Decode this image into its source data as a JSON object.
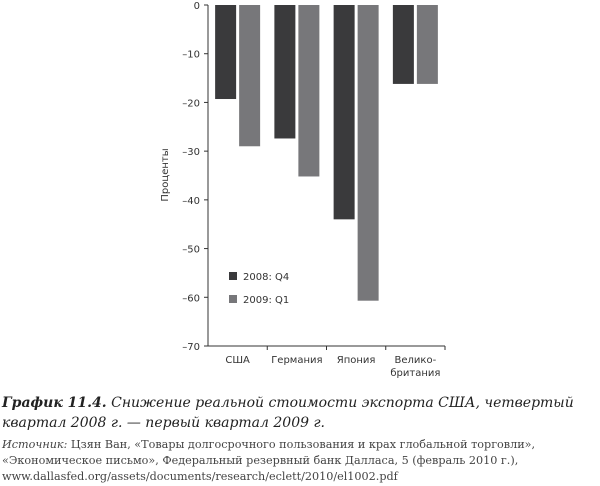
{
  "chart_data": {
    "type": "bar",
    "categories": [
      "США",
      "Германия",
      "Япония",
      "Велико-\nбритания"
    ],
    "series": [
      {
        "name": "2008: Q4",
        "color": "#3a3a3c",
        "values": [
          -19.3,
          -27.4,
          -44,
          -16.2
        ]
      },
      {
        "name": "2009: Q1",
        "color": "#77777a",
        "values": [
          -29,
          -35.2,
          -60.7,
          -16.2
        ]
      }
    ],
    "ylabel": "Проценты",
    "ylim": [
      -70,
      0
    ],
    "yticks": [
      "0",
      "–10",
      "–20",
      "–30",
      "–40",
      "–50",
      "–60",
      "–70"
    ],
    "ytick_values": [
      0,
      -10,
      -20,
      -30,
      -40,
      -50,
      -60,
      -70
    ],
    "legend_position": "lower-left",
    "grid": false
  },
  "caption": {
    "label": "График 11.4.",
    "text": " Снижение реальной стоимости экспорта США, четвертый квартал 2008 г. — первый квартал 2009 г."
  },
  "source": {
    "label": "Источник:",
    "text": " Цзян Ван, «Товары долгосрочного пользования и крах глобальной торговли», «Экономическое письмо», Федеральный резервный банк Далласа, 5 (февраль 2010 г.), www.dallasfed.org/assets/documents/research/eclett/2010/el1002.pdf"
  }
}
